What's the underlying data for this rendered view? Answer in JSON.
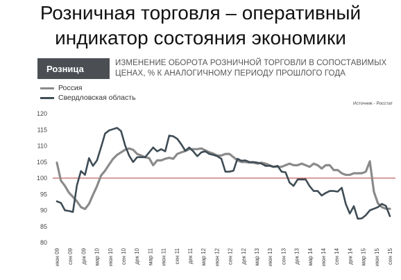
{
  "slide": {
    "title_line1": "Розничная торговля – оперативный",
    "title_line2": "индикатор состояния экономики"
  },
  "chart_data": {
    "type": "line",
    "badge": "Розница",
    "title": "ИЗМЕНЕНИЕ ОБОРОТА РОЗНИЧНОЙ ТОРГОВЛИ В СОПОСТАВИМЫХ ЦЕНАХ, % К АНАЛОГИЧНОМУ ПЕРИОДУ ПРОШЛОГО ГОДА",
    "source": "Источник - Росстат",
    "ylim": [
      80,
      120
    ],
    "yticks": [
      80,
      85,
      90,
      95,
      100,
      105,
      110,
      115,
      120
    ],
    "reference_line": 100,
    "x_tick_labels": [
      "июн 09",
      "сен 09",
      "дек 09",
      "мар 10",
      "июн 10",
      "сен 10",
      "дек 10",
      "мар 11",
      "июн 11",
      "сен 11",
      "дек 11",
      "мар 12",
      "июн 12",
      "сен 12",
      "дек 12",
      "мар 13",
      "июн 13",
      "сен 13",
      "дек 13",
      "мар 14",
      "июн 14",
      "сен 14",
      "дек 14",
      "мар 15",
      "июн 15",
      "сен 15"
    ],
    "series": [
      {
        "name": "Россия",
        "color": "#8a8a8a",
        "values": [
          104.8,
          99.2,
          97.6,
          95.5,
          94.2,
          92.8,
          91.0,
          90.4,
          92.0,
          94.8,
          97.5,
          100.8,
          102.3,
          104.2,
          106.0,
          107.2,
          108.0,
          108.8,
          109.2,
          108.8,
          107.5,
          107.0,
          106.5,
          106.2,
          104.0,
          105.5,
          105.5,
          106.0,
          106.3,
          106.0,
          107.5,
          108.0,
          108.4,
          109.0,
          109.0,
          109.0,
          109.2,
          108.6,
          108.0,
          107.6,
          107.0,
          107.0,
          107.5,
          107.5,
          106.5,
          105.5,
          105.0,
          105.0,
          104.8,
          104.8,
          104.5,
          104.8,
          104.5,
          104.0,
          103.5,
          103.5,
          103.5,
          104.0,
          104.5,
          104.0,
          104.0,
          104.5,
          104.0,
          103.5,
          104.5,
          104.0,
          103.0,
          104.0,
          104.0,
          102.5,
          102.5,
          101.5,
          101.0,
          101.0,
          101.5,
          101.5,
          101.5,
          102.0,
          105.2,
          95.8,
          92.2,
          91.0,
          90.5,
          90.5
        ]
      },
      {
        "name": "Свердловская область",
        "color": "#3e4c55",
        "values": [
          92.8,
          92.3,
          90.0,
          89.8,
          89.5,
          97.8,
          102.2,
          101.0,
          106.2,
          103.8,
          105.5,
          109.5,
          113.8,
          114.8,
          115.2,
          115.6,
          114.6,
          110.2,
          107.0,
          105.0,
          106.5,
          106.5,
          106.5,
          108.0,
          109.5,
          108.3,
          109.0,
          108.3,
          113.2,
          113.0,
          112.2,
          110.5,
          108.5,
          109.5,
          108.3,
          106.8,
          108.0,
          108.3,
          107.5,
          107.2,
          106.8,
          106.0,
          102.0,
          102.0,
          102.3,
          106.0,
          105.4,
          105.5,
          105.0,
          105.0,
          104.8,
          104.5,
          103.8,
          103.8,
          103.5,
          103.8,
          102.0,
          101.8,
          98.6,
          97.6,
          99.6,
          99.6,
          99.6,
          97.5,
          96.0,
          96.0,
          94.6,
          95.4,
          96.0,
          96.0,
          95.8,
          97.0,
          92.0,
          89.0,
          91.3,
          87.4,
          87.5,
          88.5,
          90.0,
          90.5,
          91.0,
          92.0,
          91.4,
          88.2
        ]
      }
    ]
  }
}
